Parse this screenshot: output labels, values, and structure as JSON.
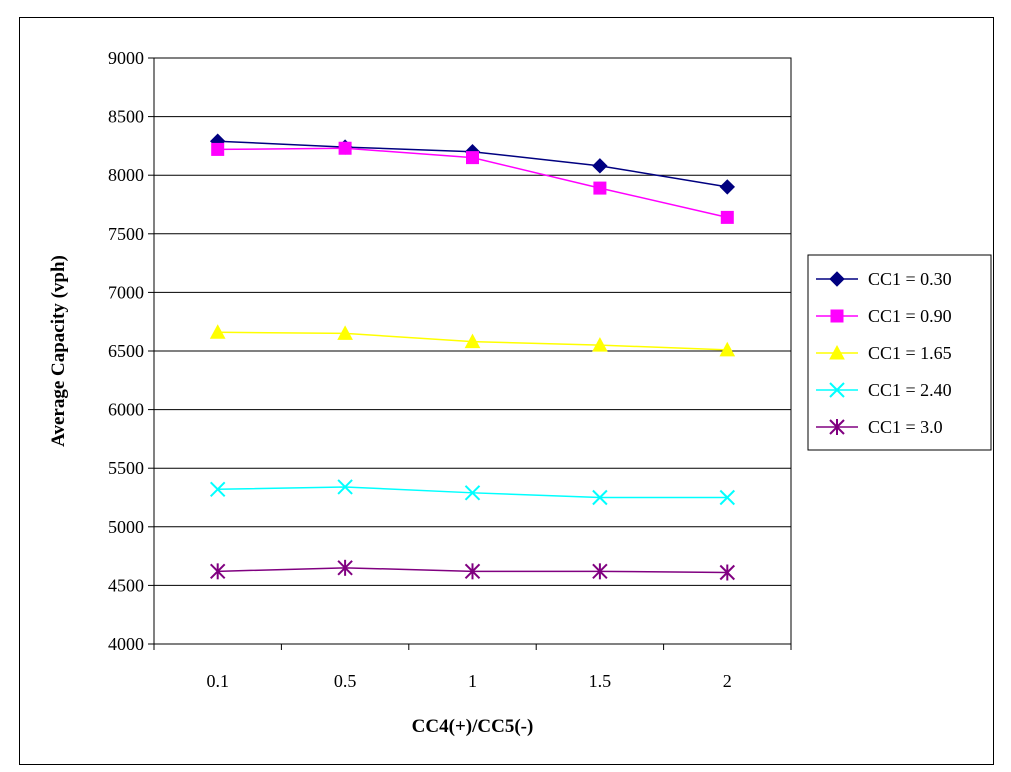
{
  "chart_data": {
    "type": "line",
    "title": "",
    "xlabel": "CC4(+)/CC5(-)",
    "ylabel": "Average Capacity (vph)",
    "categories": [
      "0.1",
      "0.5",
      "1",
      "1.5",
      "2"
    ],
    "ylim": [
      4000,
      9000
    ],
    "yticks": [
      4000,
      4500,
      5000,
      5500,
      6000,
      6500,
      7000,
      7500,
      8000,
      8500,
      9000
    ],
    "grid": true,
    "legend_position": "right",
    "series": [
      {
        "name": "CC1 = 0.30",
        "color": "#000080",
        "marker": "diamond",
        "values": [
          8290,
          8240,
          8200,
          8080,
          7900
        ]
      },
      {
        "name": "CC1 = 0.90",
        "color": "#FF00FF",
        "marker": "square",
        "values": [
          8220,
          8230,
          8150,
          7890,
          7640
        ]
      },
      {
        "name": "CC1 = 1.65",
        "color": "#FFFF00",
        "marker": "triangle",
        "values": [
          6660,
          6650,
          6580,
          6550,
          6510
        ]
      },
      {
        "name": "CC1 = 2.40",
        "color": "#00FFFF",
        "marker": "x",
        "values": [
          5320,
          5340,
          5290,
          5250,
          5250
        ]
      },
      {
        "name": "CC1 = 3.0",
        "color": "#800080",
        "marker": "star",
        "values": [
          4620,
          4650,
          4620,
          4620,
          4610
        ]
      }
    ]
  }
}
